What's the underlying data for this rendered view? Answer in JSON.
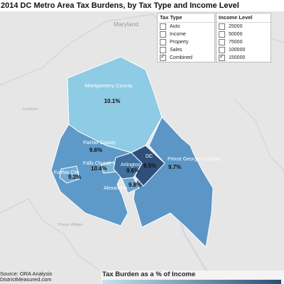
{
  "title": "2014 DC Metro Area Tax Burdens, by Tax Type and Income Level",
  "map_labels": {
    "state": "Maryland",
    "loudoun": "Loudoun",
    "prince_william": "Prince William"
  },
  "regions": [
    {
      "name": "Montgomery County",
      "value": "10.1%",
      "color": "#8ecbe4"
    },
    {
      "name": "Fairfax County",
      "value": "9.6%",
      "color": "#5d9ac9"
    },
    {
      "name": "Fairfax City",
      "value": "9.3%",
      "color": "#73a9d2"
    },
    {
      "name": "Falls Church",
      "value": "10.4%",
      "color": "#7bb5dc"
    },
    {
      "name": "Arlington",
      "value": "9.6%",
      "color": "#3e6f9e"
    },
    {
      "name": "Alexandria",
      "value": "9.8%",
      "color": "#6ca6d0"
    },
    {
      "name": "DC",
      "value": "8.5%",
      "color": "#2f4f7a"
    },
    {
      "name": "Prince George's County",
      "value": "9.7%",
      "color": "#5b96c6"
    }
  ],
  "tax_type_filter": {
    "title": "Tax Type",
    "options": [
      {
        "label": "Auto",
        "checked": false
      },
      {
        "label": "Income",
        "checked": false
      },
      {
        "label": "Property",
        "checked": false
      },
      {
        "label": "Sales",
        "checked": false
      },
      {
        "label": "Combined",
        "checked": true
      }
    ]
  },
  "income_filter": {
    "title": "Income Level",
    "options": [
      {
        "label": "25000",
        "checked": false
      },
      {
        "label": "50000",
        "checked": false
      },
      {
        "label": "75000",
        "checked": false
      },
      {
        "label": "100000",
        "checked": false
      },
      {
        "label": "150000",
        "checked": true
      }
    ]
  },
  "source": {
    "line1": "Source: ORA Analysis",
    "line2": "DistrictMeasured.com"
  },
  "legend": {
    "title": "Tax Burden as a % of Income"
  }
}
